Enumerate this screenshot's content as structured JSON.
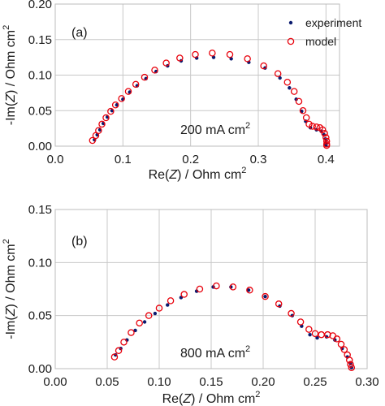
{
  "chart_data": [
    {
      "type": "scatter",
      "panel_label": "(a)",
      "annotation": "200 mA cm",
      "annotation_sup": "2",
      "xlabel_pre": "Re(",
      "xlabel_var": "Z",
      "xlabel_post": ") / Ohm cm",
      "xlabel_sup": "2",
      "ylabel_pre": "-Im(",
      "ylabel_var": "Z",
      "ylabel_post": ") / Ohm cm",
      "ylabel_sup": "2",
      "xlim": [
        0.0,
        0.42
      ],
      "ylim": [
        0.0,
        0.2
      ],
      "xticks": [
        0.0,
        0.1,
        0.2,
        0.3,
        0.4
      ],
      "xtick_labels": [
        "0.0",
        "0.1",
        "0.2",
        "0.3",
        "0.4"
      ],
      "yticks": [
        0.0,
        0.05,
        0.1,
        0.15,
        0.2
      ],
      "ytick_labels": [
        "0.00",
        "0.05",
        "0.10",
        "0.15",
        "0.20"
      ],
      "grid": true,
      "legend": {
        "position": "top-right",
        "entries": [
          "experiment",
          "model"
        ]
      },
      "series": [
        {
          "name": "experiment",
          "marker": "filled-dot",
          "color": "#0a1a6e",
          "points": [
            [
              0.058,
              0.009
            ],
            [
              0.062,
              0.016
            ],
            [
              0.066,
              0.023
            ],
            [
              0.071,
              0.032
            ],
            [
              0.077,
              0.041
            ],
            [
              0.084,
              0.05
            ],
            [
              0.091,
              0.058
            ],
            [
              0.1,
              0.066
            ],
            [
              0.11,
              0.076
            ],
            [
              0.121,
              0.085
            ],
            [
              0.134,
              0.095
            ],
            [
              0.149,
              0.105
            ],
            [
              0.166,
              0.113
            ],
            [
              0.186,
              0.12
            ],
            [
              0.209,
              0.124
            ],
            [
              0.234,
              0.125
            ],
            [
              0.26,
              0.123
            ],
            [
              0.286,
              0.118
            ],
            [
              0.31,
              0.11
            ],
            [
              0.332,
              0.096
            ],
            [
              0.346,
              0.082
            ],
            [
              0.356,
              0.066
            ],
            [
              0.364,
              0.049
            ],
            [
              0.37,
              0.035
            ],
            [
              0.377,
              0.026
            ],
            [
              0.386,
              0.023
            ],
            [
              0.393,
              0.021
            ],
            [
              0.397,
              0.016
            ],
            [
              0.399,
              0.01
            ],
            [
              0.4,
              0.004
            ],
            [
              0.4,
              0.001
            ]
          ]
        },
        {
          "name": "model",
          "marker": "open-circle",
          "color": "#e8000b",
          "points": [
            [
              0.055,
              0.008
            ],
            [
              0.06,
              0.015
            ],
            [
              0.064,
              0.022
            ],
            [
              0.069,
              0.031
            ],
            [
              0.075,
              0.04
            ],
            [
              0.082,
              0.049
            ],
            [
              0.089,
              0.058
            ],
            [
              0.098,
              0.067
            ],
            [
              0.108,
              0.077
            ],
            [
              0.119,
              0.087
            ],
            [
              0.132,
              0.097
            ],
            [
              0.147,
              0.107
            ],
            [
              0.164,
              0.117
            ],
            [
              0.184,
              0.124
            ],
            [
              0.207,
              0.129
            ],
            [
              0.232,
              0.131
            ],
            [
              0.258,
              0.129
            ],
            [
              0.284,
              0.123
            ],
            [
              0.308,
              0.113
            ],
            [
              0.329,
              0.102
            ],
            [
              0.343,
              0.09
            ],
            [
              0.353,
              0.077
            ],
            [
              0.36,
              0.063
            ],
            [
              0.366,
              0.05
            ],
            [
              0.371,
              0.04
            ],
            [
              0.375,
              0.031
            ],
            [
              0.38,
              0.028
            ],
            [
              0.386,
              0.027
            ],
            [
              0.391,
              0.026
            ],
            [
              0.395,
              0.023
            ],
            [
              0.398,
              0.018
            ],
            [
              0.4,
              0.012
            ],
            [
              0.401,
              0.007
            ],
            [
              0.401,
              0.003
            ],
            [
              0.401,
              0.001
            ]
          ]
        }
      ]
    },
    {
      "type": "scatter",
      "panel_label": "(b)",
      "annotation": "800 mA cm",
      "annotation_sup": "2",
      "xlabel_pre": "Re(",
      "xlabel_var": "Z",
      "xlabel_post": ") / Ohm cm",
      "xlabel_sup": "2",
      "ylabel_pre": "-Im(",
      "ylabel_var": "Z",
      "ylabel_post": ") / Ohm cm",
      "ylabel_sup": "2",
      "xlim": [
        0.0,
        0.3
      ],
      "ylim": [
        0.0,
        0.15
      ],
      "xticks": [
        0.0,
        0.05,
        0.1,
        0.15,
        0.2,
        0.25,
        0.3
      ],
      "xtick_labels": [
        "0.00",
        "0.05",
        "0.10",
        "0.15",
        "0.20",
        "0.25",
        "0.30"
      ],
      "yticks": [
        0.0,
        0.05,
        0.1,
        0.15
      ],
      "ytick_labels": [
        "0.00",
        "0.05",
        "0.10",
        "0.15"
      ],
      "grid": true,
      "legend": null,
      "series": [
        {
          "name": "experiment",
          "marker": "filled-dot",
          "color": "#0a1a6e",
          "points": [
            [
              0.058,
              0.013
            ],
            [
              0.063,
              0.019
            ],
            [
              0.069,
              0.027
            ],
            [
              0.077,
              0.036
            ],
            [
              0.086,
              0.044
            ],
            [
              0.096,
              0.052
            ],
            [
              0.108,
              0.06
            ],
            [
              0.121,
              0.067
            ],
            [
              0.136,
              0.073
            ],
            [
              0.152,
              0.077
            ],
            [
              0.169,
              0.077
            ],
            [
              0.186,
              0.074
            ],
            [
              0.202,
              0.068
            ],
            [
              0.216,
              0.059
            ],
            [
              0.228,
              0.05
            ],
            [
              0.237,
              0.04
            ],
            [
              0.245,
              0.032
            ],
            [
              0.252,
              0.029
            ],
            [
              0.261,
              0.03
            ],
            [
              0.269,
              0.027
            ],
            [
              0.276,
              0.019
            ],
            [
              0.281,
              0.011
            ],
            [
              0.284,
              0.005
            ],
            [
              0.285,
              0.001
            ]
          ]
        },
        {
          "name": "model",
          "marker": "open-circle",
          "color": "#e8000b",
          "points": [
            [
              0.057,
              0.011
            ],
            [
              0.061,
              0.017
            ],
            [
              0.066,
              0.025
            ],
            [
              0.073,
              0.034
            ],
            [
              0.081,
              0.043
            ],
            [
              0.09,
              0.05
            ],
            [
              0.1,
              0.057
            ],
            [
              0.111,
              0.064
            ],
            [
              0.124,
              0.07
            ],
            [
              0.139,
              0.075
            ],
            [
              0.155,
              0.078
            ],
            [
              0.171,
              0.077
            ],
            [
              0.187,
              0.074
            ],
            [
              0.202,
              0.068
            ],
            [
              0.215,
              0.061
            ],
            [
              0.227,
              0.052
            ],
            [
              0.236,
              0.044
            ],
            [
              0.244,
              0.037
            ],
            [
              0.25,
              0.033
            ],
            [
              0.256,
              0.032
            ],
            [
              0.262,
              0.032
            ],
            [
              0.267,
              0.031
            ],
            [
              0.271,
              0.028
            ],
            [
              0.275,
              0.023
            ],
            [
              0.278,
              0.018
            ],
            [
              0.281,
              0.013
            ],
            [
              0.283,
              0.008
            ],
            [
              0.284,
              0.004
            ],
            [
              0.285,
              0.001
            ]
          ]
        }
      ]
    }
  ]
}
